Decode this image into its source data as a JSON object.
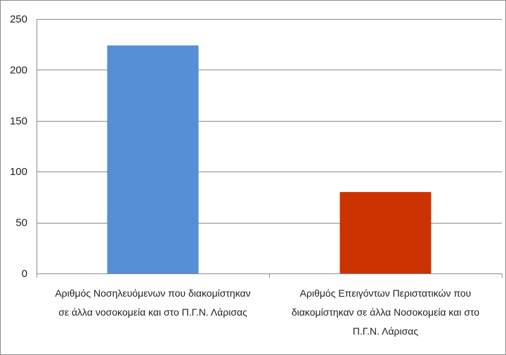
{
  "chart_data": {
    "type": "bar",
    "title": "",
    "xlabel": "",
    "ylabel": "",
    "ylim": [
      0,
      250
    ],
    "yticks": [
      0,
      50,
      100,
      150,
      200,
      250
    ],
    "grid": true,
    "legend": "none",
    "categories": [
      [
        "Αριθμός Νοσηλευόμενων που διακομίστηκαν",
        "σε άλλα νοσοκομεία και στο Π.Γ.Ν. Λάρισας"
      ],
      [
        "Αριθμός Επειγόντων Περιστατικών που",
        "διακομίστηκαν σε άλλα Νοσοκομεία και στο",
        "Π.Γ.Ν. Λάρισας"
      ]
    ],
    "values": [
      224,
      80
    ],
    "colors": [
      "#558ed5",
      "#cc3300"
    ]
  }
}
